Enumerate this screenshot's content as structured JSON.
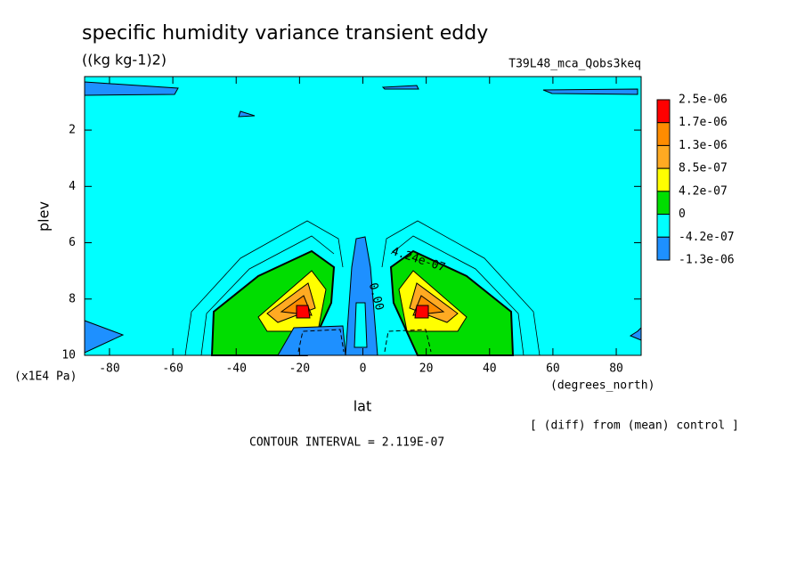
{
  "chart_data": {
    "type": "contour",
    "title": "specific humidity variance transient eddy",
    "subtitle": "((kg kg-1)2)",
    "run_label": "T39L48_mca_Qobs3keq",
    "ylabel": "plev",
    "yunit": "(x1E4 Pa)",
    "xlabel": "lat",
    "xunit": "(degrees_north)",
    "note": "[ (diff) from (mean) control ]",
    "contour_interval": "CONTOUR INTERVAL = 2.119E-07",
    "xlim": [
      -87.86,
      87.86
    ],
    "xticks": [
      -80,
      -60,
      -40,
      -20,
      0,
      20,
      40,
      60,
      80
    ],
    "ylim": [
      10,
      0.1
    ],
    "yticks": [
      2,
      4,
      6,
      8,
      10
    ],
    "colorbar": {
      "levels": [
        {
          "value": 2.5e-06,
          "label": "2.5e-06"
        },
        {
          "value": 1.7e-06,
          "label": "1.7e-06"
        },
        {
          "value": 1.3e-06,
          "label": "1.3e-06"
        },
        {
          "value": 8.5e-07,
          "label": "8.5e-07"
        },
        {
          "value": 4.2e-07,
          "label": "4.2e-07"
        },
        0,
        {
          "value": -4.2e-07,
          "label": "-4.2e-07"
        },
        {
          "value": -1.3e-06,
          "label": "-1.3e-06"
        }
      ],
      "colors": [
        "#ff0000",
        "#ff8c00",
        "#ffaa22",
        "#ffff00",
        "#00dd00",
        "#00ffff",
        "#1e90ff"
      ]
    },
    "contour_labels": [
      {
        "value": 4.24e-07,
        "label": "4.24e-07"
      },
      {
        "value": 0,
        "label": "0.00"
      }
    ]
  }
}
